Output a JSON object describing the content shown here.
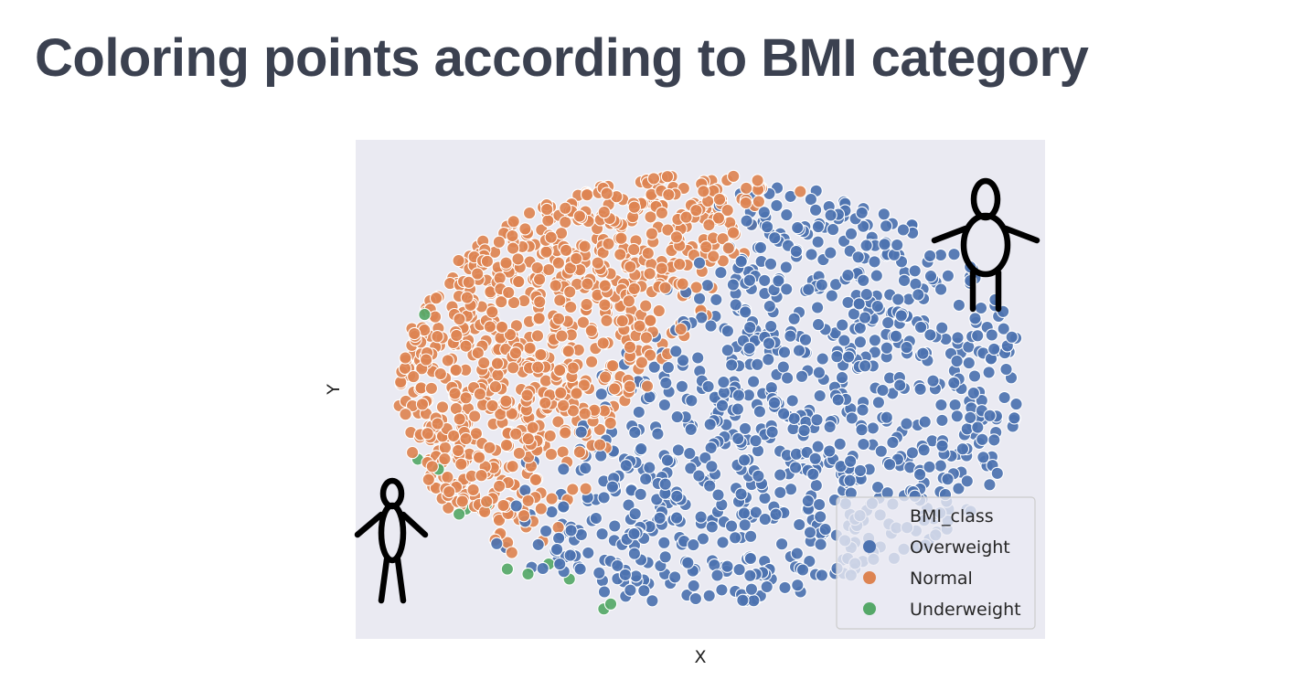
{
  "slide": {
    "title": "Coloring points according to BMI category"
  },
  "chart_data": {
    "type": "scatter",
    "title": "",
    "xlabel": "X",
    "ylabel": "Y",
    "xlim": [
      0,
      100
    ],
    "ylim": [
      0,
      100
    ],
    "grid": false,
    "background": "#eaeaf2",
    "legend": {
      "title": "BMI_class",
      "placement": "bottom-right",
      "entries": [
        "Overweight",
        "Normal",
        "Underweight"
      ]
    },
    "series": [
      {
        "name": "Overweight",
        "color": "#4c72b0",
        "n_points": 950,
        "description": "dense cluster occupying the right and upper-center region"
      },
      {
        "name": "Normal",
        "color": "#dd8452",
        "n_points": 900,
        "description": "dense cluster occupying the left and lower-center region"
      },
      {
        "name": "Underweight",
        "color": "#55a868",
        "n_points": 12,
        "description": "sparse points along the lower-left edge of the Normal cluster"
      }
    ]
  },
  "icons": {
    "thin_person": "thin-person-icon",
    "wide_person": "wide-person-icon"
  }
}
